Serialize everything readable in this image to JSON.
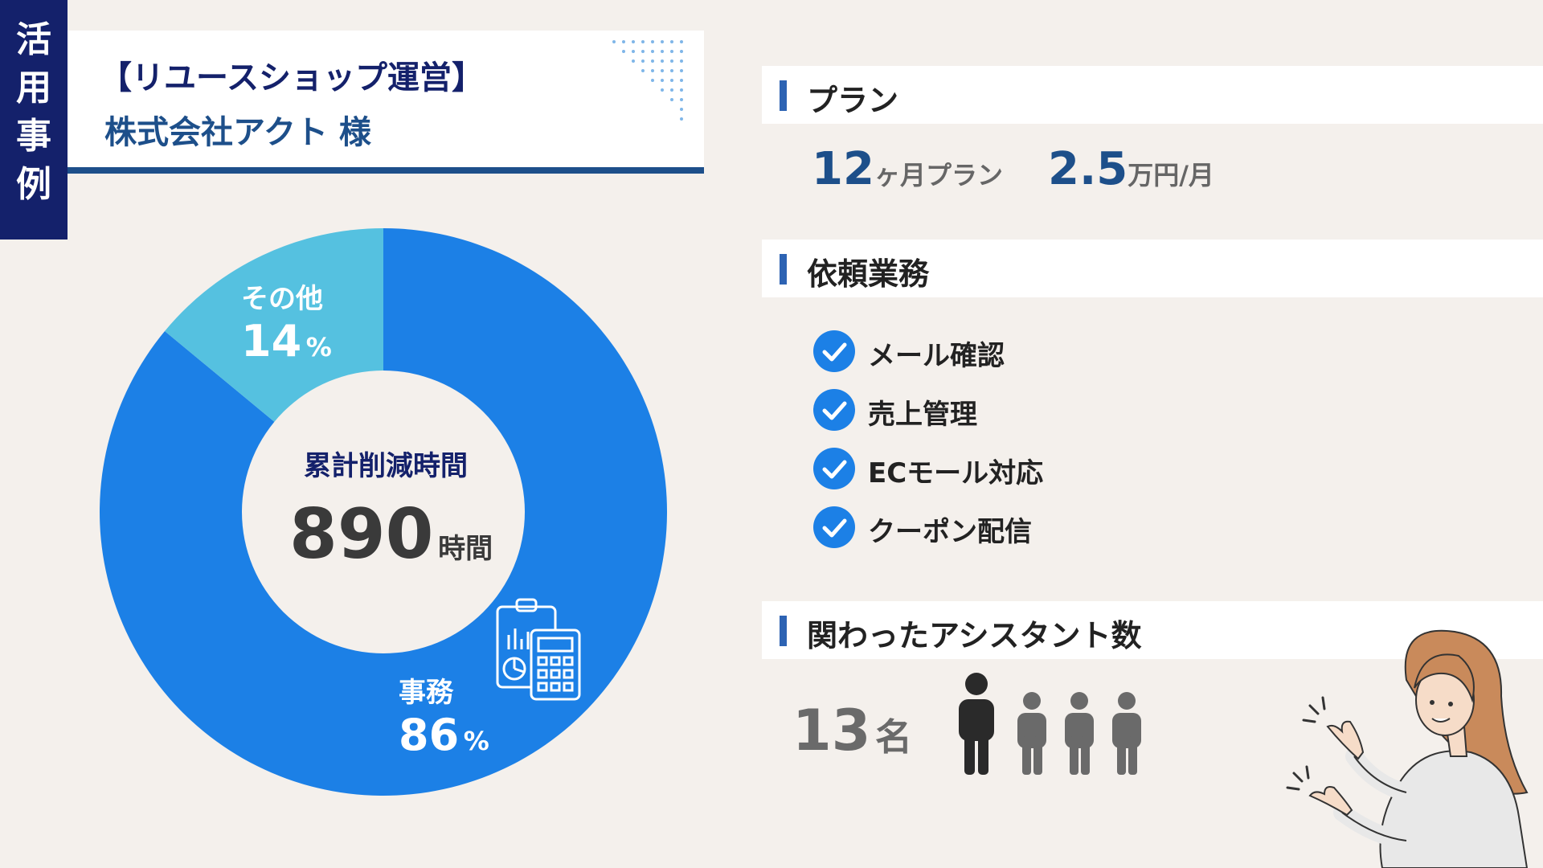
{
  "tag": {
    "chars": [
      "活",
      "用",
      "事",
      "例"
    ]
  },
  "header": {
    "title": "【リユースショップ運営】",
    "client": "株式会社アクト 様"
  },
  "chart_data": {
    "type": "pie",
    "categories": [
      "事務",
      "その他"
    ],
    "values": [
      86,
      14
    ],
    "unit": "%",
    "center_label": "累計削減時間",
    "center_value": "890",
    "center_unit": "時間"
  },
  "plan": {
    "section_label": "プラン",
    "duration_num": "12",
    "duration_unit": "ヶ月プラン",
    "price_num": "2.5",
    "price_unit": "万円/月"
  },
  "tasks": {
    "section_label": "依頼業務",
    "items": [
      "メール確認",
      "売上管理",
      "ECモール対応",
      "クーポン配信"
    ]
  },
  "assistants": {
    "section_label": "関わったアシスタント数",
    "count": "13",
    "unit": "名"
  },
  "colors": {
    "navy": "#14216b",
    "blue": "#1c80e6",
    "light_blue": "#55c1e0",
    "bg": "#f4f0ec"
  },
  "icons": [
    "check-icon",
    "person-icon",
    "calculator-report-icon",
    "woman-pointing-illustration"
  ]
}
